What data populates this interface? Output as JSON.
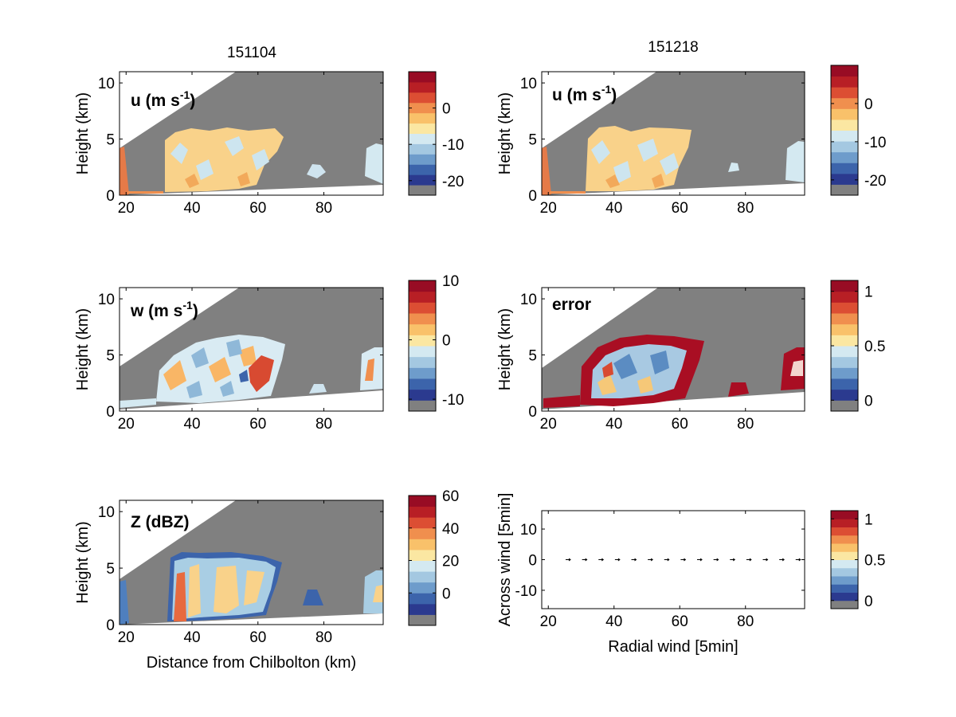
{
  "figure": {
    "column_titles": [
      "151104",
      "151218"
    ],
    "shared_xlabel": "Distance from Chilbolton (km)"
  },
  "palette": {
    "colorbar_colors": [
      "#808080",
      "#2b3a8f",
      "#3c64ab",
      "#6e9ccb",
      "#a4c8e1",
      "#d4e9f1",
      "#fbe7a2",
      "#f9c16a",
      "#f08f4e",
      "#dc4e33",
      "#b81f25",
      "#980c24"
    ],
    "gray": "#808080",
    "white": "#ffffff"
  },
  "chart_data": [
    {
      "id": "u-151104",
      "type": "heatmap",
      "label": "u (m s",
      "label_sup": "-1",
      "label_close": ")",
      "xlim": [
        18,
        98
      ],
      "ylim": [
        0,
        11
      ],
      "xticks": [
        20,
        40,
        60,
        80
      ],
      "yticks": [
        0,
        5,
        10
      ],
      "ylabel": "Height (km)",
      "xlabel": "",
      "colorbar": {
        "ticks": [
          0,
          -10,
          -20
        ],
        "range": [
          -24,
          10
        ]
      },
      "echo_regions": [
        {
          "x": [
            30,
            68
          ],
          "top": 5.6,
          "base_range": [
            0.4,
            0.9
          ],
          "dominant": "light-orange",
          "values_range": [
            -12,
            4
          ]
        },
        {
          "x": [
            18,
            21
          ],
          "top": 3.8,
          "dominant": "noise"
        },
        {
          "x": [
            82,
            88
          ],
          "top": 2.0,
          "dominant": "light-blue"
        },
        {
          "x": [
            93,
            98
          ],
          "top": 3.4,
          "dominant": "light-blue"
        }
      ]
    },
    {
      "id": "u-151218",
      "type": "heatmap",
      "label": "u (m s",
      "label_sup": "-1",
      "label_close": ")",
      "xlim": [
        18,
        98
      ],
      "ylim": [
        0,
        11
      ],
      "xticks": [
        20,
        40,
        60,
        80
      ],
      "yticks": [
        0,
        5,
        10
      ],
      "ylabel": "Height (km)",
      "xlabel": "",
      "colorbar": {
        "ticks": [
          0,
          -10,
          -20
        ],
        "range": [
          -24,
          10
        ]
      },
      "echo_regions": [
        {
          "x": [
            30,
            66
          ],
          "top": 5.6,
          "dominant": "light-orange",
          "values_range": [
            -12,
            4
          ]
        },
        {
          "x": [
            18,
            21
          ],
          "top": 3.8,
          "dominant": "noise"
        },
        {
          "x": [
            84,
            87
          ],
          "top": 1.8,
          "dominant": "light-blue"
        },
        {
          "x": [
            92,
            98
          ],
          "top": 3.6,
          "dominant": "light-blue"
        }
      ]
    },
    {
      "id": "w-151104",
      "type": "heatmap",
      "label": "w (m s",
      "label_sup": "-1",
      "label_close": ")",
      "xlim": [
        18,
        98
      ],
      "ylim": [
        0,
        11
      ],
      "xticks": [
        20,
        40,
        60,
        80
      ],
      "yticks": [
        0,
        5,
        10
      ],
      "ylabel": "Height (km)",
      "xlabel": "",
      "colorbar": {
        "ticks": [
          10,
          0,
          -10
        ],
        "range": [
          -12,
          10
        ]
      },
      "echo_regions": [
        {
          "x": [
            28,
            68
          ],
          "top": 5.8,
          "dominant": "mixed",
          "values_range": [
            -8,
            8
          ]
        },
        {
          "x": [
            93,
            98
          ],
          "top": 5.4,
          "dominant": "mixed"
        }
      ]
    },
    {
      "id": "error-151218",
      "type": "heatmap",
      "label": "error",
      "xlim": [
        18,
        98
      ],
      "ylim": [
        0,
        11
      ],
      "xticks": [
        20,
        40,
        60,
        80
      ],
      "yticks": [
        0,
        5,
        10
      ],
      "ylabel": "Height (km)",
      "xlabel": "",
      "colorbar": {
        "ticks": [
          1,
          0.5,
          0
        ],
        "range": [
          -0.1,
          1.1
        ]
      },
      "echo_regions": [
        {
          "x": [
            28,
            68
          ],
          "top": 6.0,
          "dominant": "mixed-red-edge",
          "values_range": [
            0,
            1
          ]
        },
        {
          "x": [
            90,
            98
          ],
          "top": 5.4,
          "dominant": "red"
        }
      ]
    },
    {
      "id": "Z-151104",
      "type": "heatmap",
      "label": "Z (dBZ)",
      "xlim": [
        18,
        98
      ],
      "ylim": [
        0,
        11
      ],
      "xticks": [
        20,
        40,
        60,
        80
      ],
      "yticks": [
        0,
        5,
        10
      ],
      "ylabel": "Height (km)",
      "xlabel": "Distance from Chilbolton (km)",
      "colorbar": {
        "ticks": [
          60,
          40,
          20,
          0
        ],
        "range": [
          -20,
          60
        ]
      },
      "echo_regions": [
        {
          "x": [
            33,
            67
          ],
          "top": 6.2,
          "dominant": "light-blue-orange",
          "values_range": [
            -10,
            50
          ]
        },
        {
          "x": [
            34,
            38
          ],
          "top": 5.5,
          "dominant": "red-core"
        },
        {
          "x": [
            78,
            84
          ],
          "top": 2.5,
          "dominant": "dark-blue"
        },
        {
          "x": [
            93,
            98
          ],
          "top": 5.0,
          "dominant": "light-blue"
        }
      ]
    },
    {
      "id": "quiver-151218",
      "type": "scatter",
      "label": "",
      "xlim": [
        18,
        98
      ],
      "ylim": [
        -16,
        16
      ],
      "xticks": [
        20,
        40,
        60,
        80
      ],
      "yticks": [
        10,
        0,
        -10
      ],
      "xlabel": "Radial wind [5min]",
      "ylabel": "Across wind [5min]",
      "colorbar": {
        "ticks": [
          1,
          0.5,
          0
        ],
        "range": [
          -0.1,
          1.1
        ]
      },
      "arrows": [
        {
          "x": 26,
          "y": 0
        },
        {
          "x": 31,
          "y": 0
        },
        {
          "x": 36,
          "y": 0
        },
        {
          "x": 41,
          "y": 0
        },
        {
          "x": 46,
          "y": 0
        },
        {
          "x": 51,
          "y": 0
        },
        {
          "x": 56,
          "y": 0
        },
        {
          "x": 61,
          "y": 0
        },
        {
          "x": 66,
          "y": 0
        },
        {
          "x": 71,
          "y": 0
        },
        {
          "x": 76,
          "y": 0
        },
        {
          "x": 81,
          "y": 0
        },
        {
          "x": 86,
          "y": 0
        },
        {
          "x": 91,
          "y": 0
        },
        {
          "x": 96,
          "y": 0
        }
      ]
    }
  ]
}
